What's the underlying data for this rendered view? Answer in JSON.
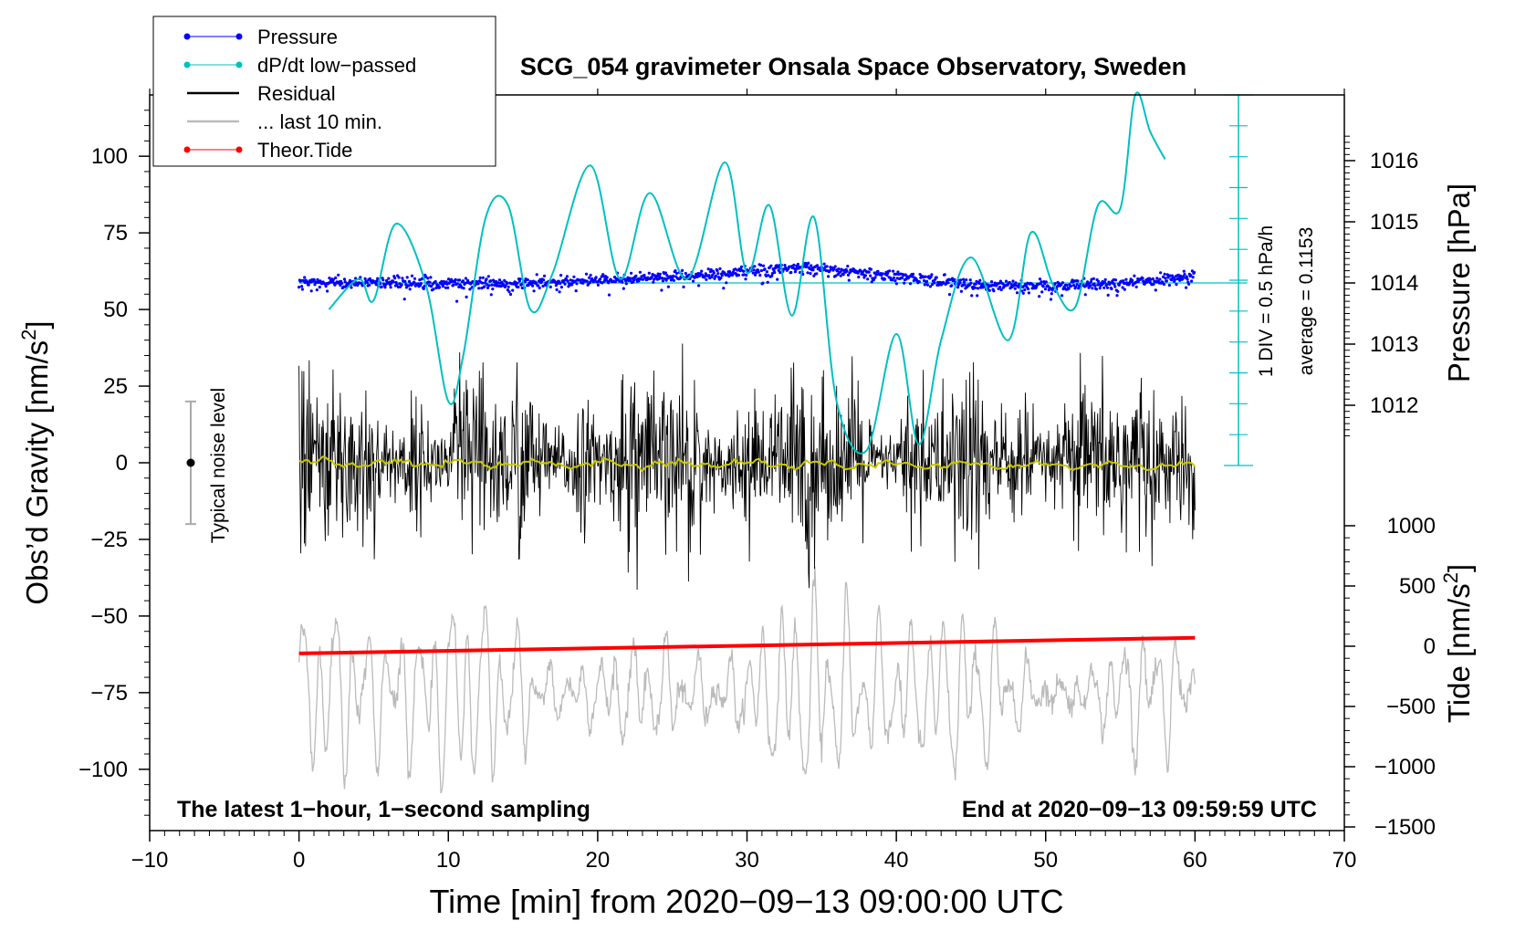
{
  "chart_data": {
    "type": "line",
    "title": "SCG_054 gravimeter Onsala Space Observatory, Sweden",
    "xlabel": "Time [min] from 2020−09−13 09:00:00 UTC",
    "ylabel_left": "Obs’d Gravity [nm/s",
    "ylabel_left_sup": "2",
    "ylabel_left_close": "]",
    "ylabel_pressure": "Pressure [hPa]",
    "ylabel_tide": "Tide [nm/s",
    "ylabel_tide_sup": "2",
    "ylabel_tide_close": "]",
    "xlim": [
      -10,
      70
    ],
    "ylim_left": [
      -120,
      120
    ],
    "xticks": [
      -10,
      0,
      10,
      20,
      30,
      40,
      50,
      60,
      70
    ],
    "xtick_labels": [
      "−10",
      "0",
      "10",
      "20",
      "30",
      "40",
      "50",
      "60",
      "70"
    ],
    "yticks_left": [
      -100,
      -75,
      -50,
      -25,
      0,
      25,
      50,
      75,
      100
    ],
    "ytick_labels_left": [
      "−100",
      "−75",
      "−50",
      "−25",
      "0",
      "25",
      "50",
      "75",
      "100"
    ],
    "pressure_ticks": [
      1012,
      1013,
      1014,
      1015,
      1016
    ],
    "pressure_tick_labels": [
      "1012",
      "1013",
      "1014",
      "1015",
      "1016"
    ],
    "tide_ticks": [
      -1500,
      -1000,
      -500,
      0,
      500,
      1000
    ],
    "tide_tick_labels": [
      "−1500",
      "−1000",
      "−500",
      "0",
      "500",
      "1000"
    ],
    "legend": [
      {
        "label": "Pressure",
        "color": "#0000ff",
        "marker": "dot"
      },
      {
        "label": "dP/dt low−passed",
        "color": "#00c0c0",
        "marker": "dot"
      },
      {
        "label": "Residual",
        "color": "#000000",
        "marker": "none"
      },
      {
        "label": "... last 10 min.",
        "color": "#bbbbbb",
        "marker": "none"
      },
      {
        "label": "Theor.Tide",
        "color": "#ff0000",
        "marker": "dot"
      }
    ],
    "series": [
      {
        "name": "Pressure",
        "unit": "hPa",
        "x": [
          0,
          5,
          10,
          15,
          20,
          25,
          30,
          34,
          38,
          42,
          46,
          50,
          54,
          58,
          60
        ],
        "values": [
          1014.0,
          1014.0,
          1013.98,
          1014.0,
          1014.05,
          1014.1,
          1014.18,
          1014.25,
          1014.15,
          1014.05,
          1013.96,
          1013.95,
          1013.98,
          1014.05,
          1014.12
        ]
      },
      {
        "name": "dP/dt low−passed",
        "unit": "nm/s2 equiv",
        "x": [
          2,
          4,
          5,
          6.5,
          8.5,
          10,
          11,
          12.5,
          14,
          15.5,
          17,
          19.5,
          21.5,
          23.5,
          26,
          28.5,
          30,
          31.5,
          33,
          34.5,
          36,
          38,
          40,
          41.5,
          43,
          45,
          47.5,
          49,
          50.5,
          52,
          53.5,
          55,
          56,
          57,
          58
        ],
        "values": [
          50,
          60,
          53,
          78,
          58,
          20,
          35,
          80,
          84,
          50,
          62,
          97,
          60,
          88,
          60,
          98,
          62,
          84,
          48,
          80,
          20,
          4,
          42,
          6,
          40,
          67,
          40,
          75,
          58,
          51,
          84,
          83,
          120,
          108,
          99
        ]
      },
      {
        "name": "Residual",
        "unit": "nm/s2",
        "x_range": [
          0,
          60
        ],
        "amplitude_typical": 25,
        "min": -53,
        "max": 50
      },
      {
        "name": "... last 10 min.",
        "unit": "nm/s2",
        "x_range": [
          0,
          60
        ],
        "min": -118,
        "max": -28
      },
      {
        "name": "Theor.Tide",
        "unit": "nm/s2",
        "x": [
          0,
          60
        ],
        "values": [
          -60,
          70
        ]
      },
      {
        "name": "Residual smoothed",
        "unit": "nm/s2",
        "x": [
          0,
          60
        ],
        "values": [
          0,
          -1
        ]
      }
    ],
    "pressure_average_line_hpa": 1014.0,
    "annotations": {
      "noise_label": "Typical noise level",
      "noise_range": [
        -20,
        20
      ],
      "scale_label": "1 DIV = 0.5 hPa/h",
      "average_label": "average = 0.1153",
      "bottom_left": "The latest 1−hour, 1−second sampling",
      "bottom_right": "End at 2020−09−13 09:59:59 UTC"
    },
    "colors": {
      "pressure": "#0000ff",
      "dpdt": "#00c0c0",
      "residual": "#000000",
      "last10": "#bbbbbb",
      "tide": "#ff0000",
      "smooth": "#c8c800",
      "noise": "#aaaaaa"
    }
  }
}
